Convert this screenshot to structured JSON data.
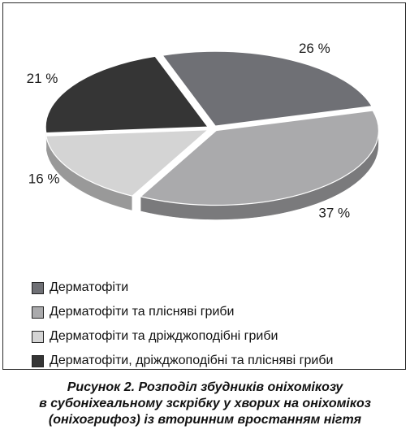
{
  "chart_data": {
    "type": "pie",
    "title": "",
    "categories": [
      "Дерматофіти",
      "Дерматофіти та плісняві гриби",
      "Дерматофіти та дріжджоподібні гриби",
      "Дерматофіти, дріжджоподібні та плісняві гриби"
    ],
    "values": [
      26,
      37,
      16,
      21
    ],
    "labels": [
      "26 %",
      "37 %",
      "16 %",
      "21 %"
    ],
    "colors": [
      "#6f7075",
      "#aaaaac",
      "#d4d4d4",
      "#353535"
    ],
    "legend_position": "bottom",
    "style": "3d-exploded"
  },
  "legend": {
    "items": [
      {
        "label": "Дерматофіти",
        "color": "#6f7075"
      },
      {
        "label": "Дерматофіти та плісняві гриби",
        "color": "#aaaaac"
      },
      {
        "label": "Дерматофіти та дріжджоподібні гриби",
        "color": "#d4d4d4"
      },
      {
        "label": "Дерматофіти, дріжджоподібні та плісняві гриби",
        "color": "#353535"
      }
    ]
  },
  "caption": {
    "line1": "Рисунок 2. Розподіл збудників оніхомікозу",
    "line2": "в субоніхеальному зскрібку у хворих на оніхомікоз",
    "line3": "(оніхогрифоз) із вторинним вростанням нігтя"
  }
}
